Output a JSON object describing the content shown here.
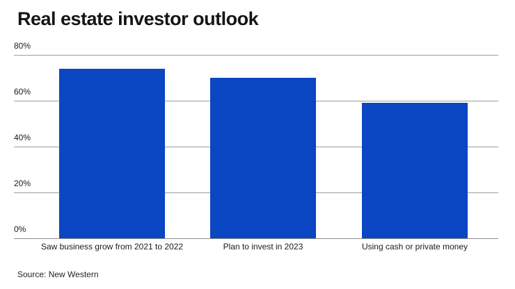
{
  "chart_data": {
    "type": "bar",
    "title": "Real estate investor outlook",
    "categories": [
      "Saw business grow from 2021 to 2022",
      "Plan to invest in 2023",
      "Using cash or private money"
    ],
    "values": [
      74,
      70,
      59
    ],
    "xlabel": "",
    "ylabel": "",
    "ylim": [
      0,
      80
    ],
    "yticks": [
      {
        "label": "0%",
        "value": 0
      },
      {
        "label": "20%",
        "value": 20
      },
      {
        "label": "40%",
        "value": 40
      },
      {
        "label": "60%",
        "value": 60
      },
      {
        "label": "80%",
        "value": 80
      }
    ],
    "grid": "horizontal",
    "legend": "none",
    "bar_color": "#0b46c3",
    "gridline_color": "#9b9b9b",
    "axis_line_color": "#8c8c8c",
    "text_color": "#1a1a1a"
  },
  "source": "Source: New Western"
}
